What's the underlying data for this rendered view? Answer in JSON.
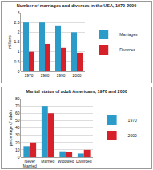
{
  "chart_data": [
    {
      "type": "bar",
      "title": "Number of marriages and divorces in the USA, 1970-2000",
      "y_label": "millions",
      "categories": [
        "1970",
        "1980",
        "1990",
        "2000"
      ],
      "series": [
        {
          "name": "Marriages",
          "color": "#2b9bc9",
          "values": [
            2.5,
            2.5,
            2.35,
            2.0
          ]
        },
        {
          "name": "Divorces",
          "color": "#d6212b",
          "values": [
            1.0,
            1.4,
            1.2,
            0.95
          ]
        }
      ],
      "ylim": [
        0,
        3
      ],
      "yticks": [
        0,
        0.5,
        1,
        1.5,
        2,
        2.5,
        3
      ],
      "grid": true,
      "legend": "right"
    },
    {
      "type": "bar",
      "title": "Marital status of adult Americans, 1970 and 2000",
      "y_label": "percentage of adults",
      "categories": [
        "Never Married",
        "Married",
        "Widowed",
        "Divorced"
      ],
      "series": [
        {
          "name": "1970",
          "color": "#2b9bc9",
          "values": [
            15,
            70,
            8,
            5
          ]
        },
        {
          "name": "2000",
          "color": "#d6212b",
          "values": [
            20,
            60,
            7,
            10
          ]
        }
      ],
      "ylim": [
        0,
        80
      ],
      "yticks": [
        0,
        10,
        20,
        30,
        40,
        50,
        60,
        70,
        80
      ],
      "grid": true,
      "legend": "right"
    }
  ]
}
